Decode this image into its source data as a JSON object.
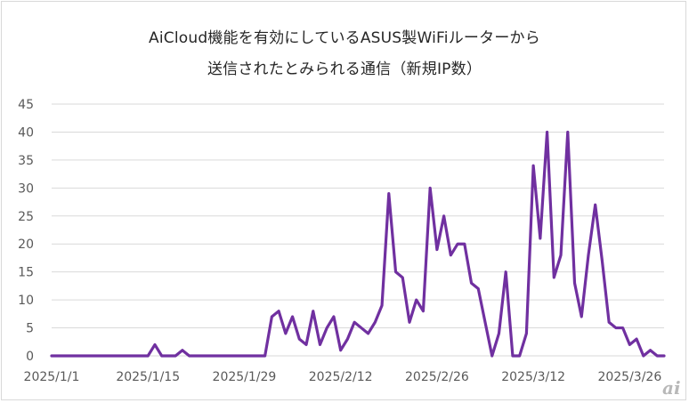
{
  "chart_data": {
    "type": "line",
    "title": "AiCloud機能を有効にしているASUS製WiFiルーターから",
    "subtitle": "送信されたとみられる通信（新規IP数）",
    "xlabel": "",
    "ylabel": "",
    "ylim": [
      0,
      45
    ],
    "yticks": [
      "0",
      "5",
      "10",
      "15",
      "20",
      "25",
      "30",
      "35",
      "40",
      "45"
    ],
    "grid": true,
    "legend": "none",
    "xtick_labels": [
      "2025/1/1",
      "2025/1/15",
      "2025/1/29",
      "2025/2/12",
      "2025/2/26",
      "2025/3/12",
      "2025/3/26"
    ],
    "x_start": "2025/1/1",
    "x_end": "2025/3/30",
    "series": [
      {
        "color": "#7030a0",
        "values": [
          0,
          0,
          0,
          0,
          0,
          0,
          0,
          0,
          0,
          0,
          0,
          0,
          0,
          0,
          0,
          2,
          0,
          0,
          0,
          1,
          0,
          0,
          0,
          0,
          0,
          0,
          0,
          0,
          0,
          0,
          0,
          0,
          7,
          8,
          4,
          7,
          3,
          2,
          8,
          2,
          5,
          7,
          1,
          3,
          6,
          5,
          4,
          6,
          9,
          29,
          15,
          14,
          6,
          10,
          8,
          30,
          19,
          25,
          18,
          20,
          20,
          13,
          12,
          6,
          0,
          4,
          15,
          0,
          0,
          4,
          34,
          21,
          40,
          14,
          18,
          40,
          13,
          7,
          18,
          27,
          17,
          6,
          5,
          5,
          2,
          3,
          0,
          1,
          0,
          0
        ]
      }
    ]
  },
  "watermark": "ai"
}
